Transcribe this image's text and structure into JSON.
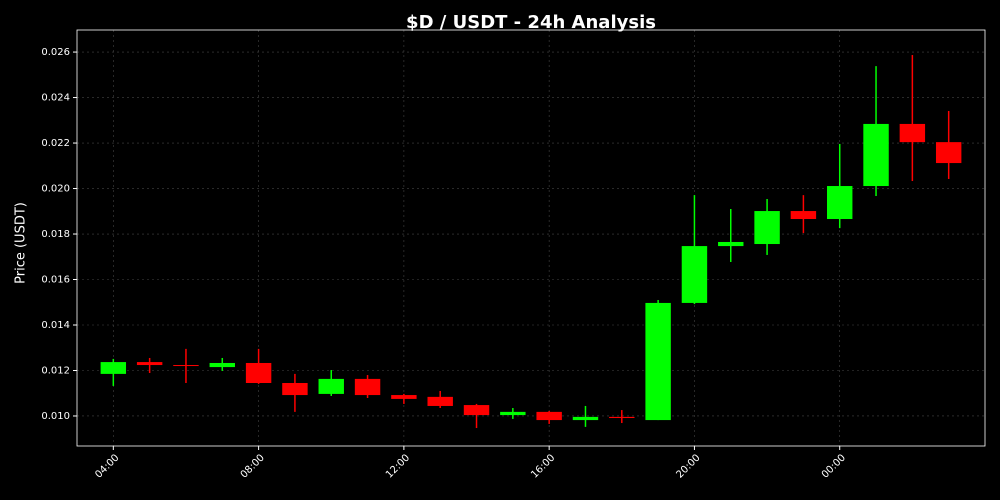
{
  "chart_data": {
    "type": "candlestick",
    "title": "$D / USDT - 24h Analysis",
    "y_label": "Price (USDT)",
    "categories": [
      "04:00",
      null,
      null,
      null,
      "08:00",
      null,
      null,
      null,
      "12:00",
      null,
      null,
      null,
      "16:00",
      null,
      null,
      null,
      "20:00",
      null,
      null,
      null,
      "00:00",
      null,
      null,
      null
    ],
    "open": [
      0.01185,
      0.01237,
      0.01224,
      0.01215,
      0.01233,
      0.01145,
      0.01097,
      0.01163,
      0.01092,
      0.01084,
      0.01048,
      0.01004,
      0.01018,
      0.00982,
      0.00996,
      0.00982,
      0.01497,
      0.01747,
      0.01756,
      0.01901,
      0.01866,
      0.02011,
      0.02284,
      0.02204
    ],
    "high": [
      0.01251,
      0.01255,
      0.01295,
      0.01255,
      0.01295,
      0.01185,
      0.01202,
      0.0118,
      0.01097,
      0.0111,
      0.01053,
      0.01035,
      0.01022,
      0.01044,
      0.01026,
      0.0151,
      0.01971,
      0.0191,
      0.01954,
      0.01971,
      0.02196,
      0.02538,
      0.02587,
      0.02341
    ],
    "low": [
      0.01132,
      0.01189,
      0.01145,
      0.01198,
      0.01141,
      0.01018,
      0.01088,
      0.01079,
      0.01053,
      0.01035,
      0.00947,
      0.00987,
      0.00965,
      0.00952,
      0.00969,
      0.00982,
      0.01492,
      0.01677,
      0.01708,
      0.01804,
      0.01826,
      0.01967,
      0.02033,
      0.02042
    ],
    "close": [
      0.01237,
      0.01224,
      0.01222,
      0.01233,
      0.01145,
      0.01092,
      0.01163,
      0.01092,
      0.01075,
      0.01044,
      0.01004,
      0.01018,
      0.00982,
      0.00996,
      0.00991,
      0.01497,
      0.01747,
      0.01765,
      0.01901,
      0.01866,
      0.02011,
      0.02284,
      0.02204,
      0.02112
    ],
    "up_color": "#00ff00",
    "down_color": "#ff0000",
    "ylim": [
      0.00868,
      0.02697
    ],
    "yticks": [
      {
        "value": 0.01,
        "label": "0.010"
      },
      0.012,
      0.014,
      0.016,
      0.018,
      {
        "value": 0.02,
        "label": "0.020"
      },
      0.022,
      0.024,
      0.026
    ],
    "grid": true
  }
}
